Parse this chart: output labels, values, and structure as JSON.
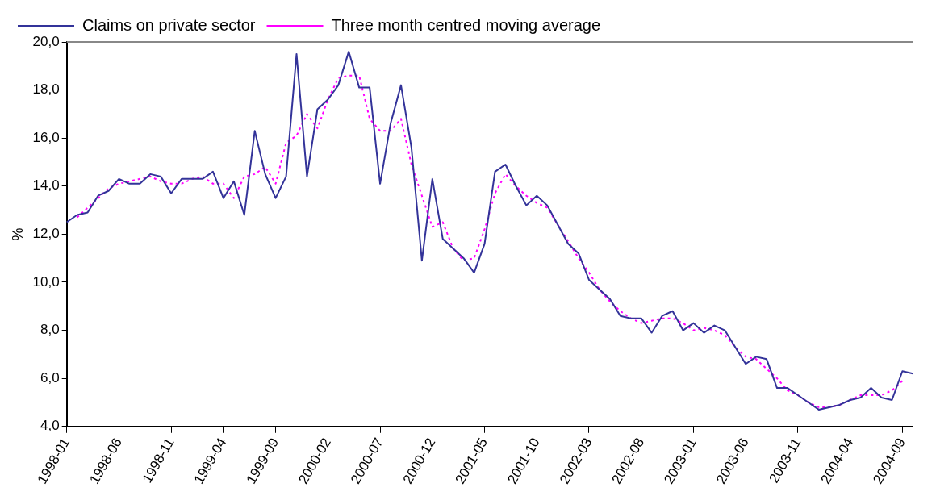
{
  "chart_data": {
    "type": "line",
    "ylabel": "%",
    "categories": [
      "1998-01",
      null,
      null,
      null,
      null,
      "1998-06",
      null,
      null,
      null,
      null,
      "1998-11",
      null,
      null,
      null,
      null,
      "1999-04",
      null,
      null,
      null,
      null,
      "1999-09",
      null,
      null,
      null,
      null,
      "2000-02",
      null,
      null,
      null,
      null,
      "2000-07",
      null,
      null,
      null,
      null,
      "2000-12",
      null,
      null,
      null,
      null,
      "2001-05",
      null,
      null,
      null,
      null,
      "2001-10",
      null,
      null,
      null,
      null,
      "2002-03",
      null,
      null,
      null,
      null,
      "2002-08",
      null,
      null,
      null,
      null,
      "2003-01",
      null,
      null,
      null,
      null,
      "2003-06",
      null,
      null,
      null,
      null,
      "2003-11",
      null,
      null,
      null,
      null,
      "2004-04",
      null,
      null,
      null,
      null,
      "2004-09",
      null
    ],
    "series": [
      {
        "name": "Claims on private sector",
        "color": "#333399",
        "line_style": "solid",
        "values": [
          12.5,
          12.8,
          12.9,
          13.6,
          13.8,
          14.3,
          14.1,
          14.1,
          14.5,
          14.4,
          13.7,
          14.3,
          14.3,
          14.3,
          14.6,
          13.5,
          14.2,
          12.8,
          16.3,
          14.5,
          13.5,
          14.4,
          19.5,
          14.4,
          17.2,
          17.6,
          18.2,
          19.6,
          18.1,
          18.1,
          14.1,
          16.6,
          18.2,
          15.6,
          10.9,
          14.3,
          11.8,
          11.4,
          11.0,
          10.4,
          11.6,
          14.6,
          14.9,
          14.0,
          13.2,
          13.6,
          13.2,
          12.4,
          11.6,
          11.2,
          10.1,
          9.7,
          9.3,
          8.6,
          8.5,
          8.5,
          7.9,
          8.6,
          8.8,
          8.0,
          8.3,
          7.9,
          8.2,
          8.0,
          7.3,
          6.6,
          6.9,
          6.8,
          5.6,
          5.6,
          5.3,
          5.0,
          4.7,
          4.8,
          4.9,
          5.1,
          5.2,
          5.6,
          5.2,
          5.1,
          6.3,
          6.2
        ]
      },
      {
        "name": "Three month centred moving average",
        "color": "#ff00ff",
        "line_style": "dotted",
        "values": [
          null,
          12.7,
          13.1,
          13.5,
          13.9,
          14.1,
          14.2,
          14.3,
          14.4,
          14.2,
          14.1,
          14.1,
          14.3,
          14.4,
          14.1,
          14.1,
          13.5,
          14.4,
          14.5,
          14.8,
          14.1,
          15.8,
          16.1,
          17.0,
          16.4,
          17.6,
          18.5,
          18.6,
          18.6,
          16.8,
          16.3,
          16.3,
          16.8,
          14.9,
          13.6,
          12.3,
          12.5,
          11.4,
          10.9,
          11.0,
          12.2,
          13.7,
          14.5,
          14.0,
          13.6,
          13.3,
          13.1,
          12.4,
          11.7,
          11.0,
          10.4,
          9.7,
          9.2,
          8.8,
          8.5,
          8.3,
          8.4,
          8.5,
          8.5,
          8.3,
          8.0,
          8.1,
          8.0,
          7.8,
          7.3,
          6.9,
          6.8,
          6.4,
          6.0,
          5.5,
          5.3,
          5.0,
          4.8,
          4.8,
          4.9,
          5.1,
          5.3,
          5.3,
          5.3,
          5.5,
          5.9,
          null
        ]
      }
    ],
    "ylim": [
      4,
      20
    ],
    "yticks": [
      {
        "value": 4,
        "label": "4,0"
      },
      {
        "value": 6,
        "label": "6,0"
      },
      {
        "value": 8,
        "label": "8,0"
      },
      {
        "value": 10,
        "label": "10,0"
      },
      {
        "value": 12,
        "label": "12,0"
      },
      {
        "value": 14,
        "label": "14,0"
      },
      {
        "value": 16,
        "label": "16,0"
      },
      {
        "value": 18,
        "label": "18,0"
      },
      {
        "value": 20,
        "label": "20,0"
      }
    ],
    "grid": false,
    "legend": "top left",
    "marker": "none"
  }
}
